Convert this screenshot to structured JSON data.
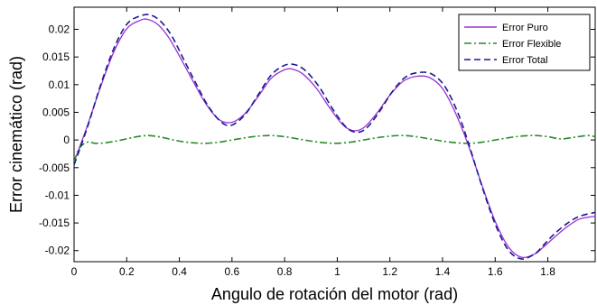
{
  "chart_data": {
    "type": "line",
    "xlabel": "Angulo de rotación del motor (rad)",
    "ylabel": "Error cinemático (rad)",
    "xlim": [
      0,
      1.98
    ],
    "ylim": [
      -0.022,
      0.024
    ],
    "xticks": [
      0,
      0.2,
      0.4,
      0.6,
      0.8,
      1,
      1.2,
      1.4,
      1.6,
      1.8
    ],
    "xtick_labels": [
      "0",
      "0.2",
      "0.4",
      "0.6",
      "0.8",
      "1",
      "1.2",
      "1.4",
      "1.6",
      "1.8"
    ],
    "yticks": [
      0.02,
      0.015,
      0.01,
      0.005,
      0,
      -0.005,
      -0.01,
      -0.015,
      -0.02
    ],
    "ytick_labels": [
      "0.02",
      "0.015",
      "0.01",
      "0.005",
      "0",
      "-0.005",
      "-0.01",
      "-0.015",
      "-0.02"
    ],
    "grid": false,
    "legend_position": "top-right",
    "series": [
      {
        "name": "Error Puro",
        "color": "#9b30d9",
        "style": "solid",
        "x": [
          0,
          0.05,
          0.1,
          0.15,
          0.2,
          0.25,
          0.28,
          0.32,
          0.36,
          0.4,
          0.45,
          0.5,
          0.55,
          0.6,
          0.65,
          0.7,
          0.75,
          0.8,
          0.83,
          0.87,
          0.92,
          0.97,
          1.02,
          1.06,
          1.1,
          1.15,
          1.2,
          1.25,
          1.3,
          1.35,
          1.4,
          1.45,
          1.5,
          1.55,
          1.6,
          1.65,
          1.7,
          1.75,
          1.78,
          1.82,
          1.87,
          1.92,
          1.98
        ],
        "y": [
          -0.004,
          0.0025,
          0.0095,
          0.0158,
          0.0201,
          0.0216,
          0.0218,
          0.0208,
          0.0185,
          0.0152,
          0.0108,
          0.0066,
          0.0037,
          0.0032,
          0.0048,
          0.0079,
          0.0112,
          0.0127,
          0.0128,
          0.0119,
          0.0094,
          0.0059,
          0.0028,
          0.0017,
          0.0022,
          0.0048,
          0.0081,
          0.0106,
          0.0115,
          0.0113,
          0.0093,
          0.0048,
          -0.0012,
          -0.0082,
          -0.0147,
          -0.0193,
          -0.0212,
          -0.0206,
          -0.0195,
          -0.0178,
          -0.0158,
          -0.0143,
          -0.0138
        ]
      },
      {
        "name": "Error Flexible",
        "color": "#2a8a2a",
        "style": "dashdot",
        "x": [
          0,
          0.02,
          0.05,
          0.08,
          0.12,
          0.16,
          0.2,
          0.24,
          0.28,
          0.32,
          0.36,
          0.4,
          0.45,
          0.5,
          0.55,
          0.6,
          0.65,
          0.7,
          0.75,
          0.8,
          0.85,
          0.9,
          0.95,
          1.0,
          1.05,
          1.1,
          1.15,
          1.2,
          1.25,
          1.3,
          1.35,
          1.4,
          1.45,
          1.5,
          1.55,
          1.6,
          1.65,
          1.7,
          1.75,
          1.8,
          1.85,
          1.9,
          1.95,
          1.98
        ],
        "y": [
          -0.004,
          -0.0015,
          -0.0004,
          -0.0006,
          -0.0005,
          -0.0002,
          0.0002,
          0.0006,
          0.0008,
          0.0006,
          0.0002,
          -0.0002,
          -0.0005,
          -0.0006,
          -0.0004,
          0.0,
          0.0004,
          0.0007,
          0.0008,
          0.0006,
          0.0002,
          -0.0002,
          -0.0005,
          -0.0006,
          -0.0004,
          0.0,
          0.0004,
          0.0007,
          0.0008,
          0.0006,
          0.0002,
          -0.0002,
          -0.0005,
          -0.0006,
          -0.0004,
          0.0,
          0.0004,
          0.0007,
          0.0008,
          0.0006,
          0.0002,
          0.0005,
          0.0008,
          0.0006
        ]
      },
      {
        "name": "Error Total",
        "color": "#1a1a8c",
        "style": "dashed",
        "x": [
          0,
          0.05,
          0.1,
          0.15,
          0.2,
          0.25,
          0.29,
          0.33,
          0.37,
          0.41,
          0.46,
          0.51,
          0.56,
          0.6,
          0.65,
          0.7,
          0.75,
          0.8,
          0.84,
          0.88,
          0.93,
          0.98,
          1.03,
          1.07,
          1.11,
          1.16,
          1.21,
          1.26,
          1.31,
          1.36,
          1.41,
          1.46,
          1.5,
          1.55,
          1.6,
          1.65,
          1.7,
          1.75,
          1.78,
          1.82,
          1.87,
          1.92,
          1.98
        ],
        "y": [
          -0.0045,
          0.0022,
          0.0098,
          0.0164,
          0.0209,
          0.0224,
          0.0226,
          0.0214,
          0.0189,
          0.0152,
          0.0105,
          0.0061,
          0.0032,
          0.0027,
          0.0046,
          0.0082,
          0.0118,
          0.0135,
          0.0136,
          0.0125,
          0.0097,
          0.0058,
          0.0025,
          0.0014,
          0.0021,
          0.0051,
          0.0088,
          0.0114,
          0.0122,
          0.0119,
          0.0096,
          0.0047,
          -0.0008,
          -0.0084,
          -0.0152,
          -0.0199,
          -0.0215,
          -0.0206,
          -0.0192,
          -0.0172,
          -0.0152,
          -0.0138,
          -0.0131
        ]
      }
    ]
  }
}
